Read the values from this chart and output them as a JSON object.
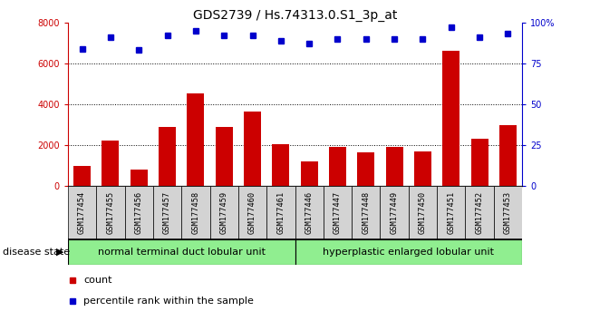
{
  "title": "GDS2739 / Hs.74313.0.S1_3p_at",
  "categories": [
    "GSM177454",
    "GSM177455",
    "GSM177456",
    "GSM177457",
    "GSM177458",
    "GSM177459",
    "GSM177460",
    "GSM177461",
    "GSM177446",
    "GSM177447",
    "GSM177448",
    "GSM177449",
    "GSM177450",
    "GSM177451",
    "GSM177452",
    "GSM177453"
  ],
  "counts": [
    1000,
    2250,
    800,
    2900,
    4550,
    2900,
    3650,
    2050,
    1200,
    1900,
    1650,
    1900,
    1700,
    6600,
    2300,
    3000
  ],
  "percentiles": [
    84,
    91,
    83,
    92,
    95,
    92,
    92,
    89,
    87,
    90,
    90,
    90,
    90,
    97,
    91,
    93
  ],
  "bar_color": "#cc0000",
  "dot_color": "#0000cc",
  "ylim_left": [
    0,
    8000
  ],
  "ylim_right": [
    0,
    100
  ],
  "yticks_left": [
    0,
    2000,
    4000,
    6000,
    8000
  ],
  "yticks_right": [
    0,
    25,
    50,
    75,
    100
  ],
  "ytick_labels_right": [
    "0",
    "25",
    "50",
    "75",
    "100%"
  ],
  "group1_label": "normal terminal duct lobular unit",
  "group2_label": "hyperplastic enlarged lobular unit",
  "group1_count": 8,
  "group2_count": 8,
  "disease_state_label": "disease state",
  "legend_count_label": "count",
  "legend_percentile_label": "percentile rank within the sample",
  "bar_color_hex": "#cc0000",
  "dot_color_hex": "#0000cc",
  "group_bg": "#90EE90",
  "xticklabel_bg": "#d3d3d3",
  "title_fontsize": 10,
  "tick_fontsize": 7,
  "axis_label_fontsize": 7,
  "group_label_fontsize": 8,
  "legend_fontsize": 8,
  "disease_state_fontsize": 8
}
